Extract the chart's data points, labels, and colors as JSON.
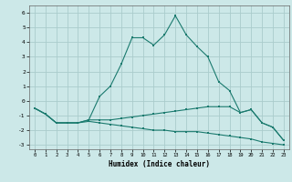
{
  "xlabel": "Humidex (Indice chaleur)",
  "bg_color": "#cce8e8",
  "grid_color": "#aacccc",
  "line_color": "#1a7a6e",
  "xlim": [
    -0.5,
    23.5
  ],
  "ylim": [
    -3.3,
    6.5
  ],
  "yticks": [
    -3,
    -2,
    -1,
    0,
    1,
    2,
    3,
    4,
    5,
    6
  ],
  "xticks": [
    0,
    1,
    2,
    3,
    4,
    5,
    6,
    7,
    8,
    9,
    10,
    11,
    12,
    13,
    14,
    15,
    16,
    17,
    18,
    19,
    20,
    21,
    22,
    23
  ],
  "line1_x": [
    0,
    1,
    2,
    3,
    4,
    5,
    6,
    7,
    8,
    9,
    10,
    11,
    12,
    13,
    14,
    15,
    16,
    17,
    18,
    19,
    20,
    21,
    22,
    23
  ],
  "line1_y": [
    -0.5,
    -0.9,
    -1.5,
    -1.5,
    -1.5,
    -1.3,
    0.3,
    1.0,
    2.5,
    4.3,
    4.3,
    3.8,
    4.5,
    5.8,
    4.5,
    3.7,
    3.0,
    1.3,
    0.7,
    -0.8,
    -0.6,
    -1.5,
    -1.8,
    -2.7
  ],
  "line2_x": [
    0,
    1,
    2,
    3,
    4,
    5,
    6,
    7,
    8,
    9,
    10,
    11,
    12,
    13,
    14,
    15,
    16,
    17,
    18,
    19,
    20,
    21,
    22,
    23
  ],
  "line2_y": [
    -0.5,
    -0.9,
    -1.5,
    -1.5,
    -1.5,
    -1.3,
    -1.3,
    -1.3,
    -1.2,
    -1.1,
    -1.0,
    -0.9,
    -0.8,
    -0.7,
    -0.6,
    -0.5,
    -0.4,
    -0.4,
    -0.4,
    -0.8,
    -0.6,
    -1.5,
    -1.8,
    -2.7
  ],
  "line3_x": [
    0,
    1,
    2,
    3,
    4,
    5,
    6,
    7,
    8,
    9,
    10,
    11,
    12,
    13,
    14,
    15,
    16,
    17,
    18,
    19,
    20,
    21,
    22,
    23
  ],
  "line3_y": [
    -0.5,
    -0.9,
    -1.5,
    -1.5,
    -1.5,
    -1.4,
    -1.5,
    -1.6,
    -1.7,
    -1.8,
    -1.9,
    -2.0,
    -2.0,
    -2.1,
    -2.1,
    -2.1,
    -2.2,
    -2.3,
    -2.4,
    -2.5,
    -2.6,
    -2.8,
    -2.9,
    -3.0
  ]
}
